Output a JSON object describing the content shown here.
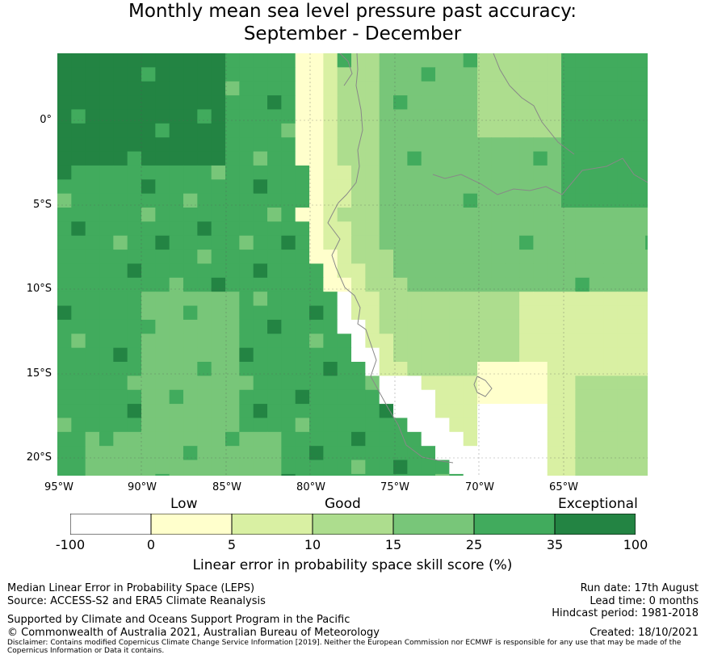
{
  "title_line1": "Monthly mean sea level pressure past accuracy:",
  "title_line2": "September - December",
  "map": {
    "lon_labels": [
      "95°W",
      "90°W",
      "85°W",
      "80°W",
      "75°W",
      "70°W",
      "65°W"
    ],
    "lat_labels": [
      "0°",
      "5°S",
      "10°S",
      "15°S",
      "20°S"
    ],
    "lon_range": [
      -95,
      -60
    ],
    "lat_range": [
      -21,
      4
    ],
    "gridlines": true,
    "cell_size_deg": 0.83,
    "category_colors": [
      "#ffffff",
      "#ffffcc",
      "#d9f0a3",
      "#addd8e",
      "#78c679",
      "#41ab5d",
      "#238443"
    ]
  },
  "colorbar": {
    "categories": [
      "Low",
      "Good",
      "Exceptional"
    ],
    "ticks": [
      "-100",
      "0",
      "5",
      "10",
      "15",
      "25",
      "35",
      "100"
    ],
    "colors": [
      "#ffffff",
      "#ffffcc",
      "#d9f0a3",
      "#addd8e",
      "#78c679",
      "#41ab5d",
      "#238443"
    ],
    "label": "Linear error in probability space skill score (%)"
  },
  "footer": {
    "left_line1": "Median Linear Error in Probability Space (LEPS)",
    "left_line2": "Source: ACCESS-S2 and ERA5 Climate Reanalysis",
    "left_line3": "Supported by Climate and Oceans Support Program in the Pacific",
    "left_line4": "© Commonwealth of Australia 2021, Australian Bureau of Meteorology",
    "run_date": "Run date: 17th August",
    "lead_time": "Lead time: 0 months",
    "hindcast": "Hindcast period: 1981-2018",
    "created": "Created: 18/10/2021",
    "disclaimer": "Disclaimer: Contains modified Copernicus Climate Change Service Information [2019]. Neither the European Commission nor ECMWF is responsible for any use that may be made of the Copernicus Information or Data it contains."
  }
}
